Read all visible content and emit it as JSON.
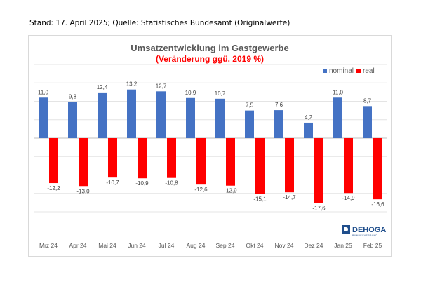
{
  "caption": "Stand: 17. April 2025; Quelle: Statistisches Bundesamt (Originalwerte)",
  "logo": {
    "name": "DEHOGA",
    "sub": "BUNDESVERBAND",
    "color": "#1f4e8c"
  },
  "chart_data": {
    "type": "bar",
    "title": "Umsatzentwicklung im Gastgewerbe",
    "subtitle": "(Veränderung ggü. 2019 %)",
    "categories": [
      "Mrz 24",
      "Apr 24",
      "Mai 24",
      "Jun 24",
      "Jul 24",
      "Aug 24",
      "Sep 24",
      "Okt 24",
      "Nov 24",
      "Dez 24",
      "Jan 25",
      "Feb 25"
    ],
    "series": [
      {
        "name": "nominal",
        "color": "#4472c4",
        "values": [
          11.0,
          9.8,
          12.4,
          13.2,
          12.7,
          10.9,
          10.7,
          7.5,
          7.6,
          4.2,
          11.0,
          8.7
        ],
        "labels": [
          "11,0",
          "9,8",
          "12,4",
          "13,2",
          "12,7",
          "10,9",
          "10,7",
          "7,5",
          "7,6",
          "4,2",
          "11,0",
          "8,7"
        ]
      },
      {
        "name": "real",
        "color": "#ff0000",
        "values": [
          -12.2,
          -13.0,
          -10.7,
          -10.9,
          -10.8,
          -12.6,
          -12.9,
          -15.1,
          -14.7,
          -17.6,
          -14.9,
          -16.6
        ],
        "labels": [
          "-12,2",
          "-13,0",
          "-10,7",
          "-10,9",
          "-10,8",
          "-12,6",
          "-12,9",
          "-15,1",
          "-14,7",
          "-17,6",
          "-14,9",
          "-16,6"
        ]
      }
    ],
    "ylim": [
      -20,
      20
    ],
    "grid": true,
    "legend": "top-right",
    "xlabel": "",
    "ylabel": ""
  }
}
